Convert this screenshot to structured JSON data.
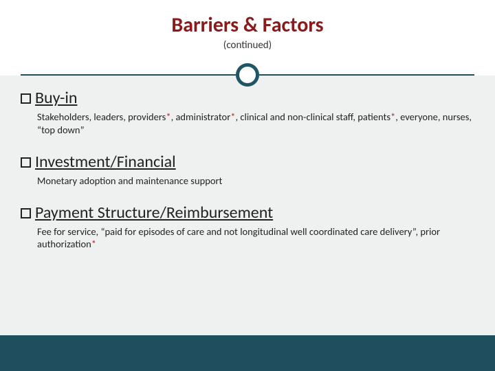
{
  "colors": {
    "title": "#8b1a1a",
    "accent_border": "#1f5666",
    "divider": "#1f4e5f",
    "footer_bg": "#1f4e5f",
    "content_bg": "#eff0f0",
    "text": "#222222",
    "star": "#b02020"
  },
  "typography": {
    "title_fontsize": 30,
    "title_weight": 700,
    "subtitle_fontsize": 15,
    "heading_fontsize": 24,
    "desc_fontsize": 14.5,
    "font_family": "Calibri"
  },
  "header": {
    "title": "Barriers & Factors",
    "subtitle": "(continued)"
  },
  "items": [
    {
      "heading": "Buy-in",
      "desc_parts": [
        {
          "t": "Stakeholders, leaders, providers"
        },
        {
          "t": "*",
          "star": true
        },
        {
          "t": ", administrator"
        },
        {
          "t": "*",
          "star": true
        },
        {
          "t": ", clinical and non-clinical staff, patients"
        },
        {
          "t": "*",
          "star": true
        },
        {
          "t": ",  everyone,  nurses, “top down”"
        }
      ]
    },
    {
      "heading": "Investment/Financial",
      "desc_parts": [
        {
          "t": "Monetary adoption and maintenance support"
        }
      ]
    },
    {
      "heading": "Payment Structure/Reimbursement",
      "desc_parts": [
        {
          "t": "Fee for service, “paid for episodes of care and not longitudinal well coordinated care delivery”, prior authorization"
        },
        {
          "t": "*",
          "star": true
        }
      ]
    }
  ]
}
